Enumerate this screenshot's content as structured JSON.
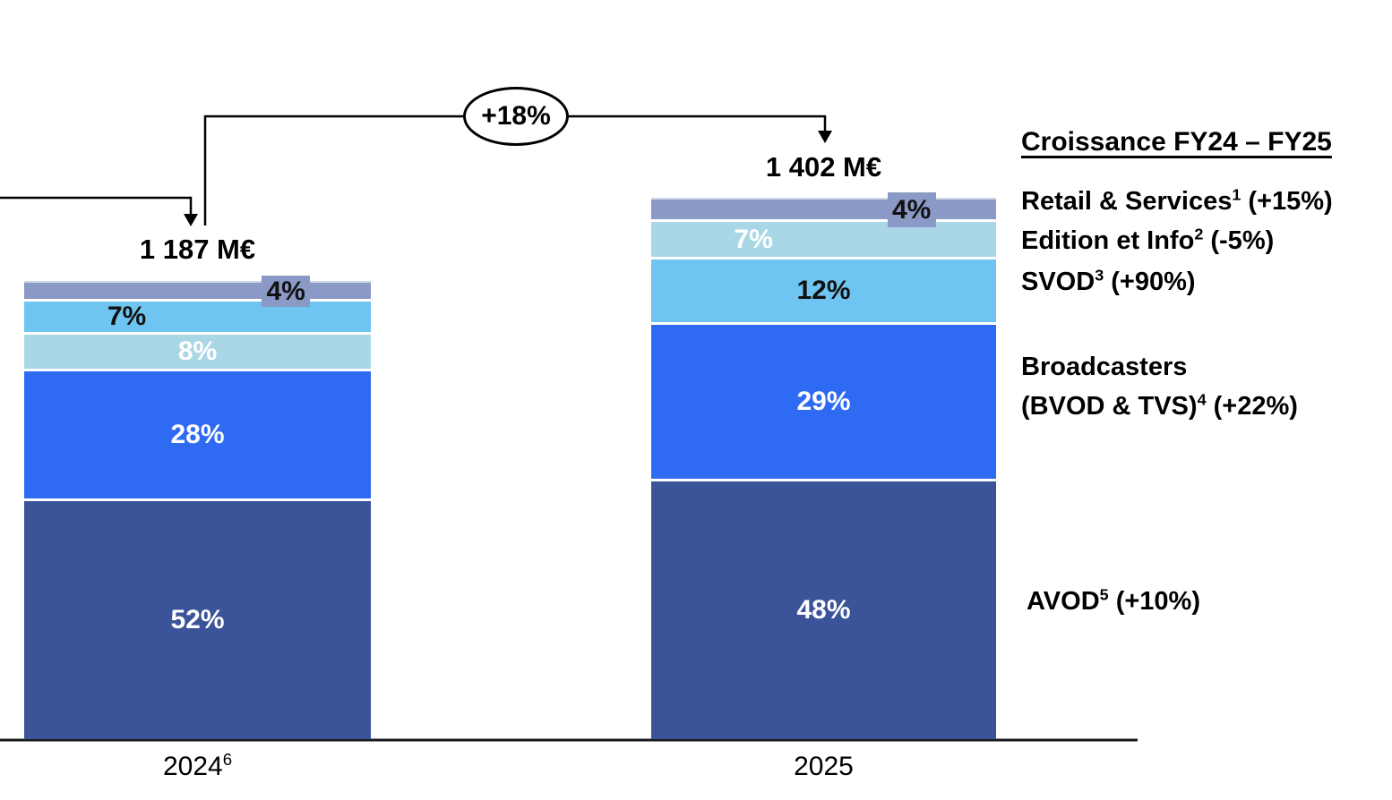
{
  "annotation": {
    "growth_label": "+18%"
  },
  "legend": {
    "title": "Croissance FY24 – FY25",
    "items": [
      {
        "pre": "Retail & Services",
        "sup": "1",
        "post": " (+15%)"
      },
      {
        "pre": "Edition et Info",
        "sup": "2",
        "post": " (-5%)"
      },
      {
        "pre": "SVOD",
        "sup": "3",
        "post": " (+90%)"
      },
      {
        "line1": "Broadcasters",
        "pre": "(BVOD & TVS)",
        "sup": "4",
        "post": " (+22%)"
      },
      {
        "pre": "AVOD",
        "sup": "5",
        "post": " (+10%)"
      }
    ]
  },
  "chart_data": {
    "type": "bar",
    "stacked": true,
    "title": "",
    "xlabel": "",
    "ylabel": "",
    "unit": "M€",
    "legend_position": "right",
    "growth_total_fy24_fy25": "+18%",
    "categories": [
      "2024",
      "2025"
    ],
    "bars": [
      {
        "category": "2024",
        "category_sup": "6",
        "total_meur": 1187,
        "total_label": "1 187 M€",
        "segments": [
          {
            "name": "retail-services",
            "label": "4%",
            "pct": 4,
            "color": "#8A99C5",
            "text_color": "#111111",
            "label_style": "tag"
          },
          {
            "name": "svod",
            "label": "7%",
            "pct": 7,
            "color": "#6FC5F2",
            "text_color": "#111111",
            "label_style": "left"
          },
          {
            "name": "edition-info",
            "label": "8%",
            "pct": 8,
            "color": "#A9D7E6",
            "text_color": "#FFFFFF",
            "label_style": "center"
          },
          {
            "name": "broadcasters",
            "label": "28%",
            "pct": 28,
            "color": "#2F6BF2",
            "text_color": "#FFFFFF",
            "label_style": "center"
          },
          {
            "name": "avod",
            "label": "52%",
            "pct": 52,
            "color": "#3A5399",
            "text_color": "#FFFFFF",
            "label_style": "center"
          }
        ]
      },
      {
        "category": "2025",
        "category_sup": "",
        "total_meur": 1402,
        "total_label": "1 402 M€",
        "segments": [
          {
            "name": "retail-services",
            "label": "4%",
            "pct": 4,
            "color": "#8A99C5",
            "text_color": "#111111",
            "label_style": "tag"
          },
          {
            "name": "edition-info",
            "label": "7%",
            "pct": 7,
            "color": "#A9D7E6",
            "text_color": "#FFFFFF",
            "label_style": "left"
          },
          {
            "name": "svod",
            "label": "12%",
            "pct": 12,
            "color": "#6FC5F2",
            "text_color": "#111111",
            "label_style": "center"
          },
          {
            "name": "broadcasters",
            "label": "29%",
            "pct": 29,
            "color": "#2F6BF2",
            "text_color": "#FFFFFF",
            "label_style": "center"
          },
          {
            "name": "avod",
            "label": "48%",
            "pct": 48,
            "color": "#3A5399",
            "text_color": "#FFFFFF",
            "label_style": "center"
          }
        ]
      }
    ],
    "colors": {
      "retail_services": "#8A99C5",
      "edition_info": "#A9D7E6",
      "svod": "#6FC5F2",
      "broadcasters": "#2F6BF2",
      "avod": "#3A5399",
      "axis": "#1a1a1a"
    }
  }
}
